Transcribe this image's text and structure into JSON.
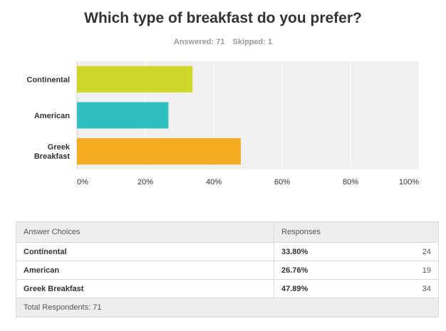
{
  "title": "Which type of breakfast do you prefer?",
  "stats": {
    "answered": "Answered: 71",
    "skipped": "Skipped: 1"
  },
  "chart_data": {
    "type": "bar",
    "orientation": "horizontal",
    "categories": [
      "Continental",
      "American",
      "Greek Breakfast"
    ],
    "values": [
      33.8,
      26.76,
      47.89
    ],
    "colors": [
      "#cfd729",
      "#2fbfbf",
      "#f5ab1f"
    ],
    "xlim": [
      0,
      100
    ],
    "ticks": [
      0,
      20,
      40,
      60,
      80,
      100
    ],
    "tick_labels": [
      "0%",
      "20%",
      "40%",
      "60%",
      "80%",
      "100%"
    ],
    "grid": true
  },
  "table": {
    "headers": {
      "choice": "Answer Choices",
      "responses": "Responses"
    },
    "rows": [
      {
        "choice": "Continental",
        "percent": "33.80%",
        "count": "24"
      },
      {
        "choice": "American",
        "percent": "26.76%",
        "count": "19"
      },
      {
        "choice": "Greek Breakfast",
        "percent": "47.89%",
        "count": "34"
      }
    ],
    "footer": "Total Respondents: 71"
  }
}
